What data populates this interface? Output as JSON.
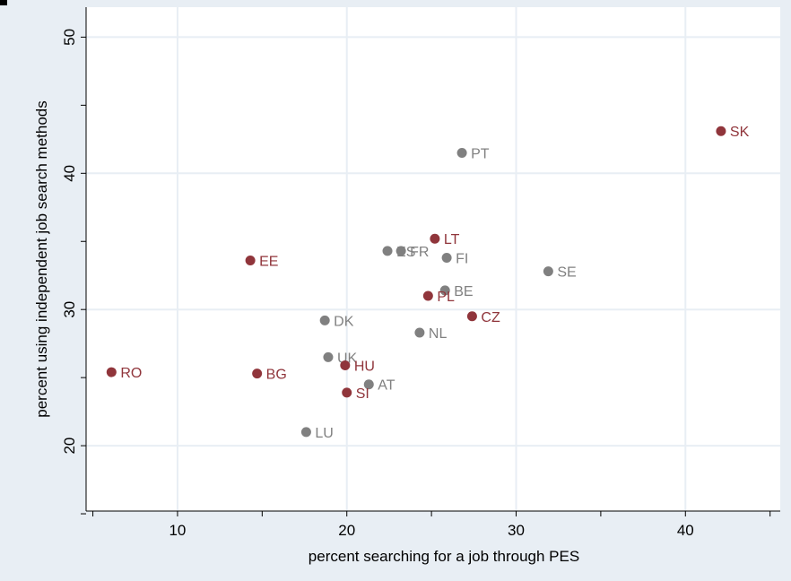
{
  "chart_data": {
    "type": "scatter",
    "xlabel": "percent searching for a job through PES",
    "ylabel": "percent using independent job search methods",
    "xlim": [
      4.6,
      45.6
    ],
    "ylim": [
      15.2,
      52.2
    ],
    "x_ticks": [
      10,
      20,
      30,
      40
    ],
    "x_minor_ticks": [
      5,
      15,
      25,
      35,
      45
    ],
    "y_ticks": [
      20,
      30,
      40,
      50
    ],
    "y_minor_ticks": [
      15,
      25,
      35,
      45
    ],
    "grid": true,
    "legend": "none",
    "colors": {
      "page_background": "#e8eef4",
      "plot_background": "#ffffff",
      "grid": "#e8eef4",
      "group_highlight": "#90353b",
      "group_other": "#808080",
      "axis": "#000000"
    },
    "points": [
      {
        "label": "SK",
        "x": 42.1,
        "y": 43.1,
        "group": "highlight"
      },
      {
        "label": "PT",
        "x": 26.8,
        "y": 41.5,
        "group": "other"
      },
      {
        "label": "LT",
        "x": 25.2,
        "y": 35.2,
        "group": "highlight"
      },
      {
        "label": "ES",
        "x": 22.4,
        "y": 34.3,
        "group": "other"
      },
      {
        "label": "FR",
        "x": 23.2,
        "y": 34.3,
        "group": "other"
      },
      {
        "label": "FI",
        "x": 25.9,
        "y": 33.8,
        "group": "other"
      },
      {
        "label": "EE",
        "x": 14.3,
        "y": 33.6,
        "group": "highlight"
      },
      {
        "label": "SE",
        "x": 31.9,
        "y": 32.8,
        "group": "other"
      },
      {
        "label": "BE",
        "x": 25.8,
        "y": 31.4,
        "group": "other"
      },
      {
        "label": "PL",
        "x": 24.8,
        "y": 31.0,
        "group": "highlight"
      },
      {
        "label": "CZ",
        "x": 27.4,
        "y": 29.5,
        "group": "highlight"
      },
      {
        "label": "DK",
        "x": 18.7,
        "y": 29.2,
        "group": "other"
      },
      {
        "label": "NL",
        "x": 24.3,
        "y": 28.3,
        "group": "other"
      },
      {
        "label": "UK",
        "x": 18.9,
        "y": 26.5,
        "group": "other"
      },
      {
        "label": "HU",
        "x": 19.9,
        "y": 25.9,
        "group": "highlight"
      },
      {
        "label": "RO",
        "x": 6.1,
        "y": 25.4,
        "group": "highlight"
      },
      {
        "label": "BG",
        "x": 14.7,
        "y": 25.3,
        "group": "highlight"
      },
      {
        "label": "AT",
        "x": 21.3,
        "y": 24.5,
        "group": "other"
      },
      {
        "label": "SI",
        "x": 20.0,
        "y": 23.9,
        "group": "highlight"
      },
      {
        "label": "LU",
        "x": 17.6,
        "y": 21.0,
        "group": "other"
      }
    ]
  }
}
